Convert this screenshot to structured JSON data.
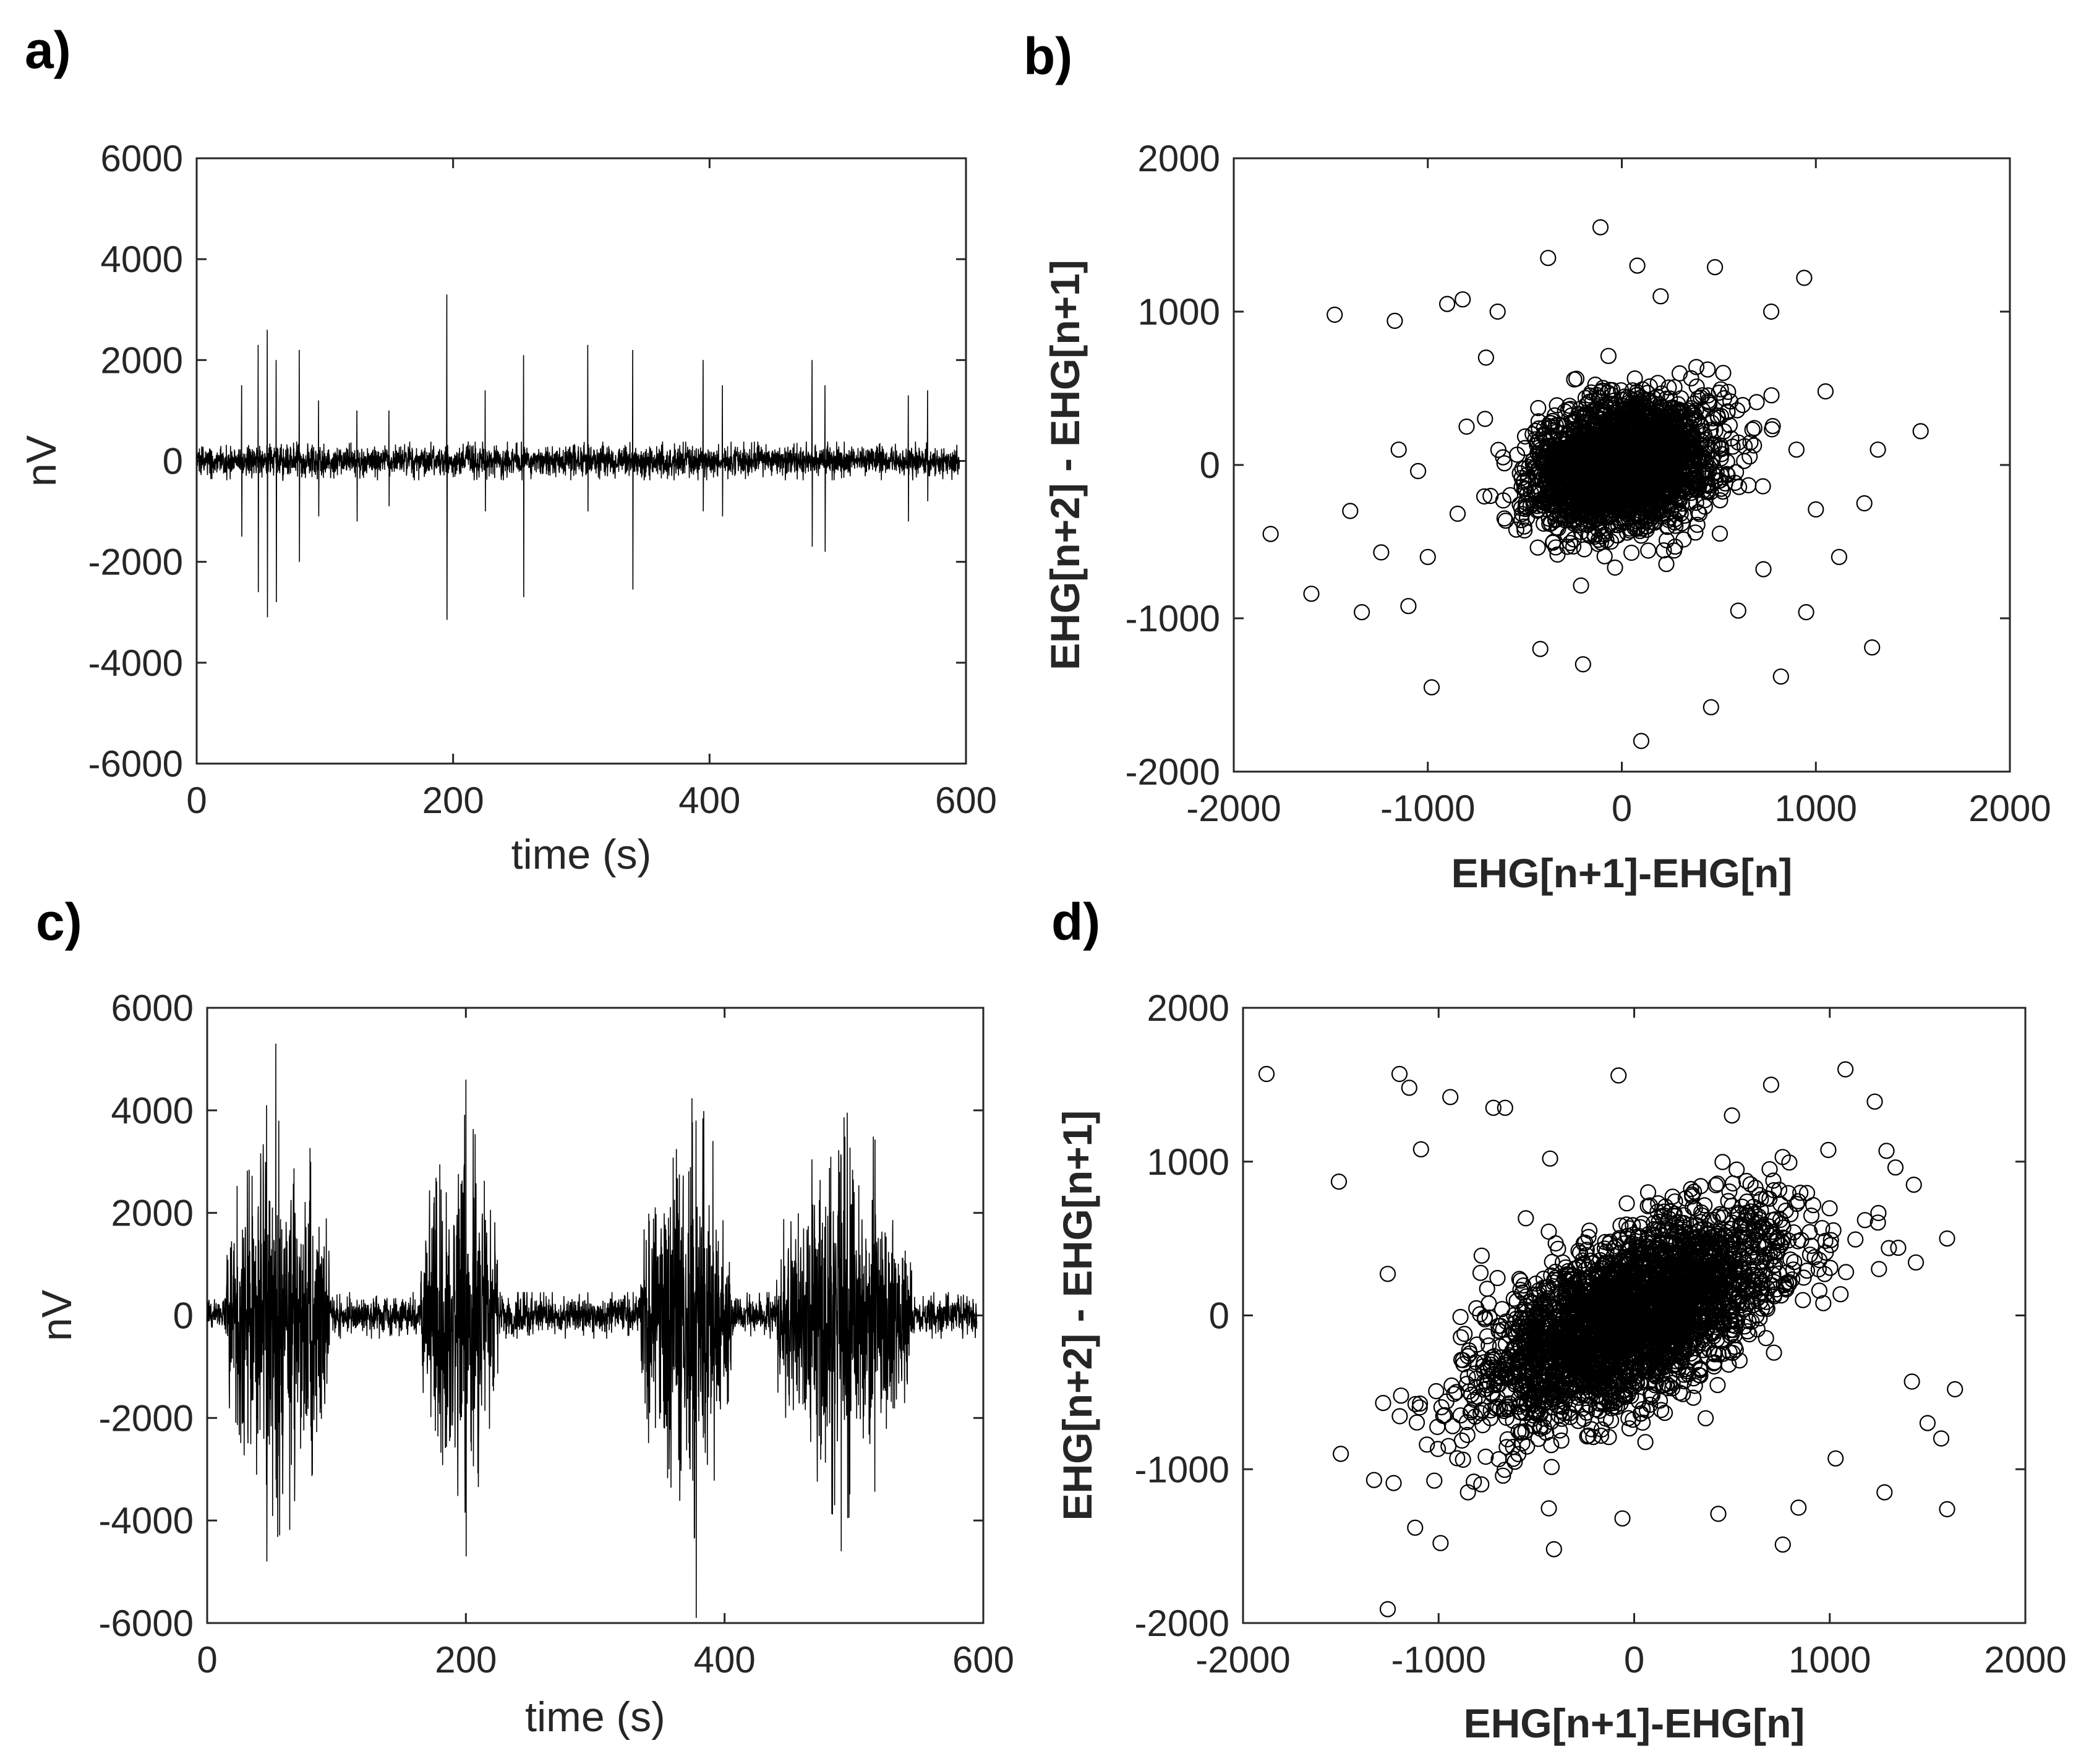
{
  "figure": {
    "colors": {
      "trace": "#000000",
      "axes": "#262626",
      "background": "#ffffff"
    }
  },
  "chart_data": [
    {
      "id": "a",
      "panel_label": "a)",
      "type": "line",
      "title": "",
      "xlabel": "time (s)",
      "ylabel": "nV",
      "xlim": [
        0,
        600
      ],
      "ylim": [
        -6000,
        6000
      ],
      "xticks": [
        "0",
        "200",
        "400",
        "600"
      ],
      "yticks": [
        "6000",
        "4000",
        "2000",
        "0",
        "-2000",
        "-4000",
        "-6000"
      ],
      "series": [
        {
          "name": "EHG",
          "baseline_noise": 320,
          "spikes": [
            {
              "t": 35,
              "up": 1500,
              "down": -1500
            },
            {
              "t": 48,
              "up": 2300,
              "down": -2600
            },
            {
              "t": 55,
              "up": 2600,
              "down": -3100
            },
            {
              "t": 62,
              "up": 2000,
              "down": -2800
            },
            {
              "t": 80,
              "up": 2200,
              "down": -2000
            },
            {
              "t": 95,
              "up": 1200,
              "down": -1100
            },
            {
              "t": 125,
              "up": 1000,
              "down": -1200
            },
            {
              "t": 150,
              "up": 1000,
              "down": -900
            },
            {
              "t": 195,
              "up": 3300,
              "down": -3150
            },
            {
              "t": 225,
              "up": 1400,
              "down": -1000
            },
            {
              "t": 255,
              "up": 2100,
              "down": -2700
            },
            {
              "t": 305,
              "up": 2300,
              "down": -1000
            },
            {
              "t": 340,
              "up": 2200,
              "down": -2550
            },
            {
              "t": 395,
              "up": 2000,
              "down": -1000
            },
            {
              "t": 410,
              "up": 1500,
              "down": -1100
            },
            {
              "t": 480,
              "up": 2000,
              "down": -1700
            },
            {
              "t": 490,
              "up": 1500,
              "down": -1800
            },
            {
              "t": 555,
              "up": 1300,
              "down": -1200
            },
            {
              "t": 570,
              "up": 1400,
              "down": -800
            }
          ],
          "bursts": []
        }
      ]
    },
    {
      "id": "b",
      "panel_label": "b)",
      "type": "scatter",
      "title": "",
      "xlabel": "EHG[n+1]-EHG[n]",
      "ylabel": "EHG[n+2] - EHG[n+1]",
      "xlim": [
        -2000,
        2000
      ],
      "ylim": [
        -2000,
        2000
      ],
      "xticks": [
        "-2000",
        "-1000",
        "0",
        "1000",
        "2000"
      ],
      "yticks": [
        "2000",
        "1000",
        "0",
        "-1000",
        "-2000"
      ],
      "cluster": {
        "n": 2400,
        "sx": 230,
        "sy": 210,
        "corr": 0.2
      },
      "outliers": [
        [
          -1810,
          -450
        ],
        [
          -1600,
          -840
        ],
        [
          -1480,
          980
        ],
        [
          -1400,
          -300
        ],
        [
          -1340,
          -960
        ],
        [
          -1170,
          940
        ],
        [
          -1100,
          -920
        ],
        [
          -980,
          -1450
        ],
        [
          -900,
          1050
        ],
        [
          -820,
          1080
        ],
        [
          -640,
          1000
        ],
        [
          -380,
          1350
        ],
        [
          -110,
          1550
        ],
        [
          80,
          1300
        ],
        [
          200,
          1100
        ],
        [
          480,
          1290
        ],
        [
          770,
          1000
        ],
        [
          940,
          1220
        ],
        [
          1050,
          480
        ],
        [
          1120,
          -600
        ],
        [
          1290,
          -1190
        ],
        [
          1320,
          100
        ],
        [
          1540,
          220
        ],
        [
          820,
          -1380
        ],
        [
          460,
          -1580
        ],
        [
          100,
          -1800
        ],
        [
          -200,
          -1300
        ],
        [
          -420,
          -1200
        ],
        [
          600,
          -950
        ],
        [
          950,
          -960
        ],
        [
          -1240,
          -570
        ],
        [
          -1000,
          -600
        ],
        [
          730,
          -680
        ],
        [
          1000,
          -290
        ],
        [
          900,
          100
        ],
        [
          -1150,
          100
        ],
        [
          -700,
          700
        ],
        [
          -800,
          250
        ],
        [
          1250,
          -250
        ],
        [
          -1050,
          -40
        ]
      ]
    },
    {
      "id": "c",
      "panel_label": "c)",
      "type": "line",
      "title": "",
      "xlabel": "time (s)",
      "ylabel": "nV",
      "xlim": [
        0,
        600
      ],
      "ylim": [
        -6000,
        6000
      ],
      "xticks": [
        "0",
        "200",
        "400",
        "600"
      ],
      "yticks": [
        "6000",
        "4000",
        "2000",
        "0",
        "-2000",
        "-4000",
        "-6000"
      ],
      "series": [
        {
          "name": "EHG",
          "baseline_noise": 380,
          "spikes": [
            {
              "t": 46,
              "up": 4100,
              "down": -4800
            },
            {
              "t": 53,
              "up": 5300,
              "down": -3200
            },
            {
              "t": 200,
              "up": 4600,
              "down": -4700
            },
            {
              "t": 378,
              "up": 3800,
              "down": -5900
            },
            {
              "t": 490,
              "up": 3100,
              "down": -4600
            }
          ],
          "bursts": [
            {
              "start": 15,
              "end": 95,
              "amp": 3600
            },
            {
              "start": 165,
              "end": 225,
              "amp": 3300
            },
            {
              "start": 335,
              "end": 405,
              "amp": 3700
            },
            {
              "start": 440,
              "end": 545,
              "amp": 3300
            }
          ]
        }
      ]
    },
    {
      "id": "d",
      "panel_label": "d)",
      "type": "scatter",
      "title": "",
      "xlabel": "EHG[n+1]-EHG[n]",
      "ylabel": "EHG[n+2] - EHG[n+1]",
      "xlim": [
        -2000,
        2000
      ],
      "ylim": [
        -2000,
        2000
      ],
      "xticks": [
        "-2000",
        "-1000",
        "0",
        "1000",
        "2000"
      ],
      "yticks": [
        "2000",
        "1000",
        "0",
        "-1000",
        "-2000"
      ],
      "cluster": {
        "n": 3000,
        "sx": 370,
        "sy": 330,
        "corr": 0.6
      },
      "outliers": [
        [
          -1880,
          1570
        ],
        [
          -1510,
          870
        ],
        [
          -1500,
          -900
        ],
        [
          -1330,
          -1070
        ],
        [
          -1260,
          270
        ],
        [
          -1200,
          1570
        ],
        [
          -1150,
          1480
        ],
        [
          -1090,
          1080
        ],
        [
          -1060,
          -840
        ],
        [
          -940,
          1420
        ],
        [
          -720,
          1350
        ],
        [
          -660,
          1350
        ],
        [
          -430,
          1020
        ],
        [
          -80,
          1560
        ],
        [
          500,
          1300
        ],
        [
          700,
          1500
        ],
        [
          1080,
          1600
        ],
        [
          1230,
          1390
        ],
        [
          1290,
          1070
        ],
        [
          1430,
          850
        ],
        [
          1600,
          500
        ],
        [
          1640,
          -480
        ],
        [
          1570,
          -800
        ],
        [
          1600,
          -1260
        ],
        [
          1280,
          -1150
        ],
        [
          1030,
          -930
        ],
        [
          840,
          -1250
        ],
        [
          760,
          -1490
        ],
        [
          430,
          -1290
        ],
        [
          -60,
          -1320
        ],
        [
          -410,
          -1520
        ],
        [
          -990,
          -1480
        ],
        [
          -1230,
          -1090
        ],
        [
          -1260,
          -1910
        ],
        [
          -850,
          -1150
        ],
        [
          -1120,
          -1380
        ],
        [
          1500,
          -700
        ],
        [
          1420,
          -430
        ],
        [
          1350,
          440
        ],
        [
          1180,
          620
        ]
      ]
    }
  ]
}
